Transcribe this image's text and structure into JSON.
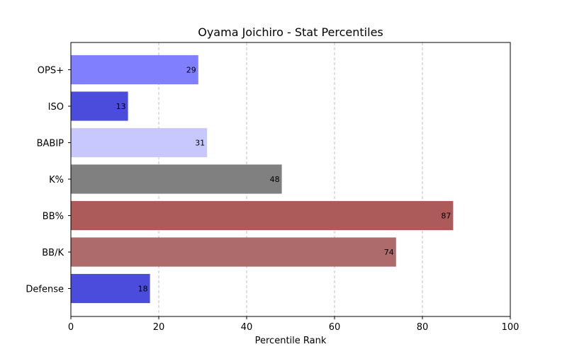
{
  "chart_data": {
    "type": "bar",
    "orientation": "horizontal",
    "title": "Oyama Joichiro - Stat Percentiles",
    "xlabel": "Percentile Rank",
    "ylabel": "",
    "xlim": [
      0,
      100
    ],
    "xticks": [
      0,
      20,
      40,
      60,
      80,
      100
    ],
    "grid": "x-dashed",
    "categories": [
      "OPS+",
      "ISO",
      "BABIP",
      "K%",
      "BB%",
      "BB/K",
      "Defense"
    ],
    "values": [
      29,
      13,
      31,
      48,
      87,
      74,
      18
    ],
    "colors": [
      "#8080ff",
      "#4b4bdc",
      "#c8c8ff",
      "#808080",
      "#ad5a5a",
      "#ad6b6b",
      "#4b4bdc"
    ]
  }
}
